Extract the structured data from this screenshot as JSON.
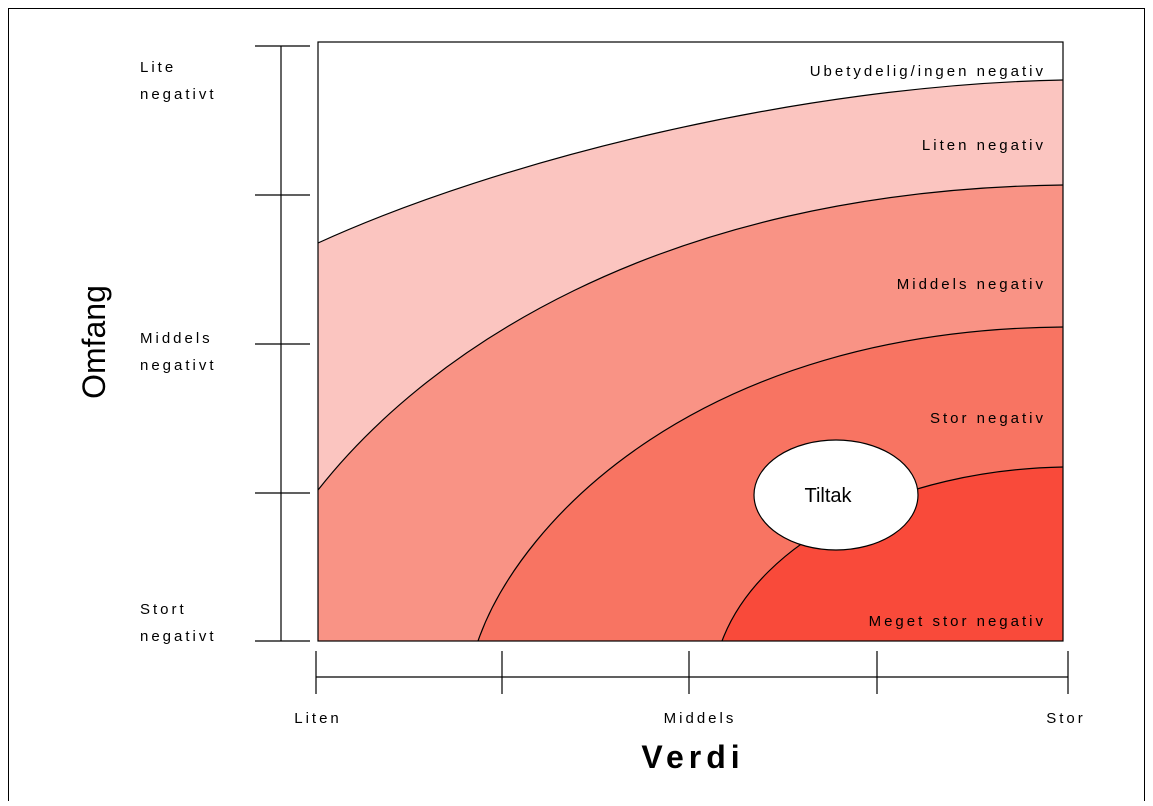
{
  "zones": [
    "Ubetydelig/ingen negativ",
    "Liten negativ",
    "Middels negativ",
    "Stor negativ",
    "Meget stor negativ"
  ],
  "marker": "Tiltak",
  "y_axis": {
    "title": "Omfang",
    "labels": [
      [
        "Lite",
        "negativt"
      ],
      [
        "Middels",
        "negativt"
      ],
      [
        "Stort",
        "negativt"
      ]
    ]
  },
  "x_axis": {
    "title": "Verdi",
    "labels": [
      "Liten",
      "Middels",
      "Stor"
    ]
  }
}
